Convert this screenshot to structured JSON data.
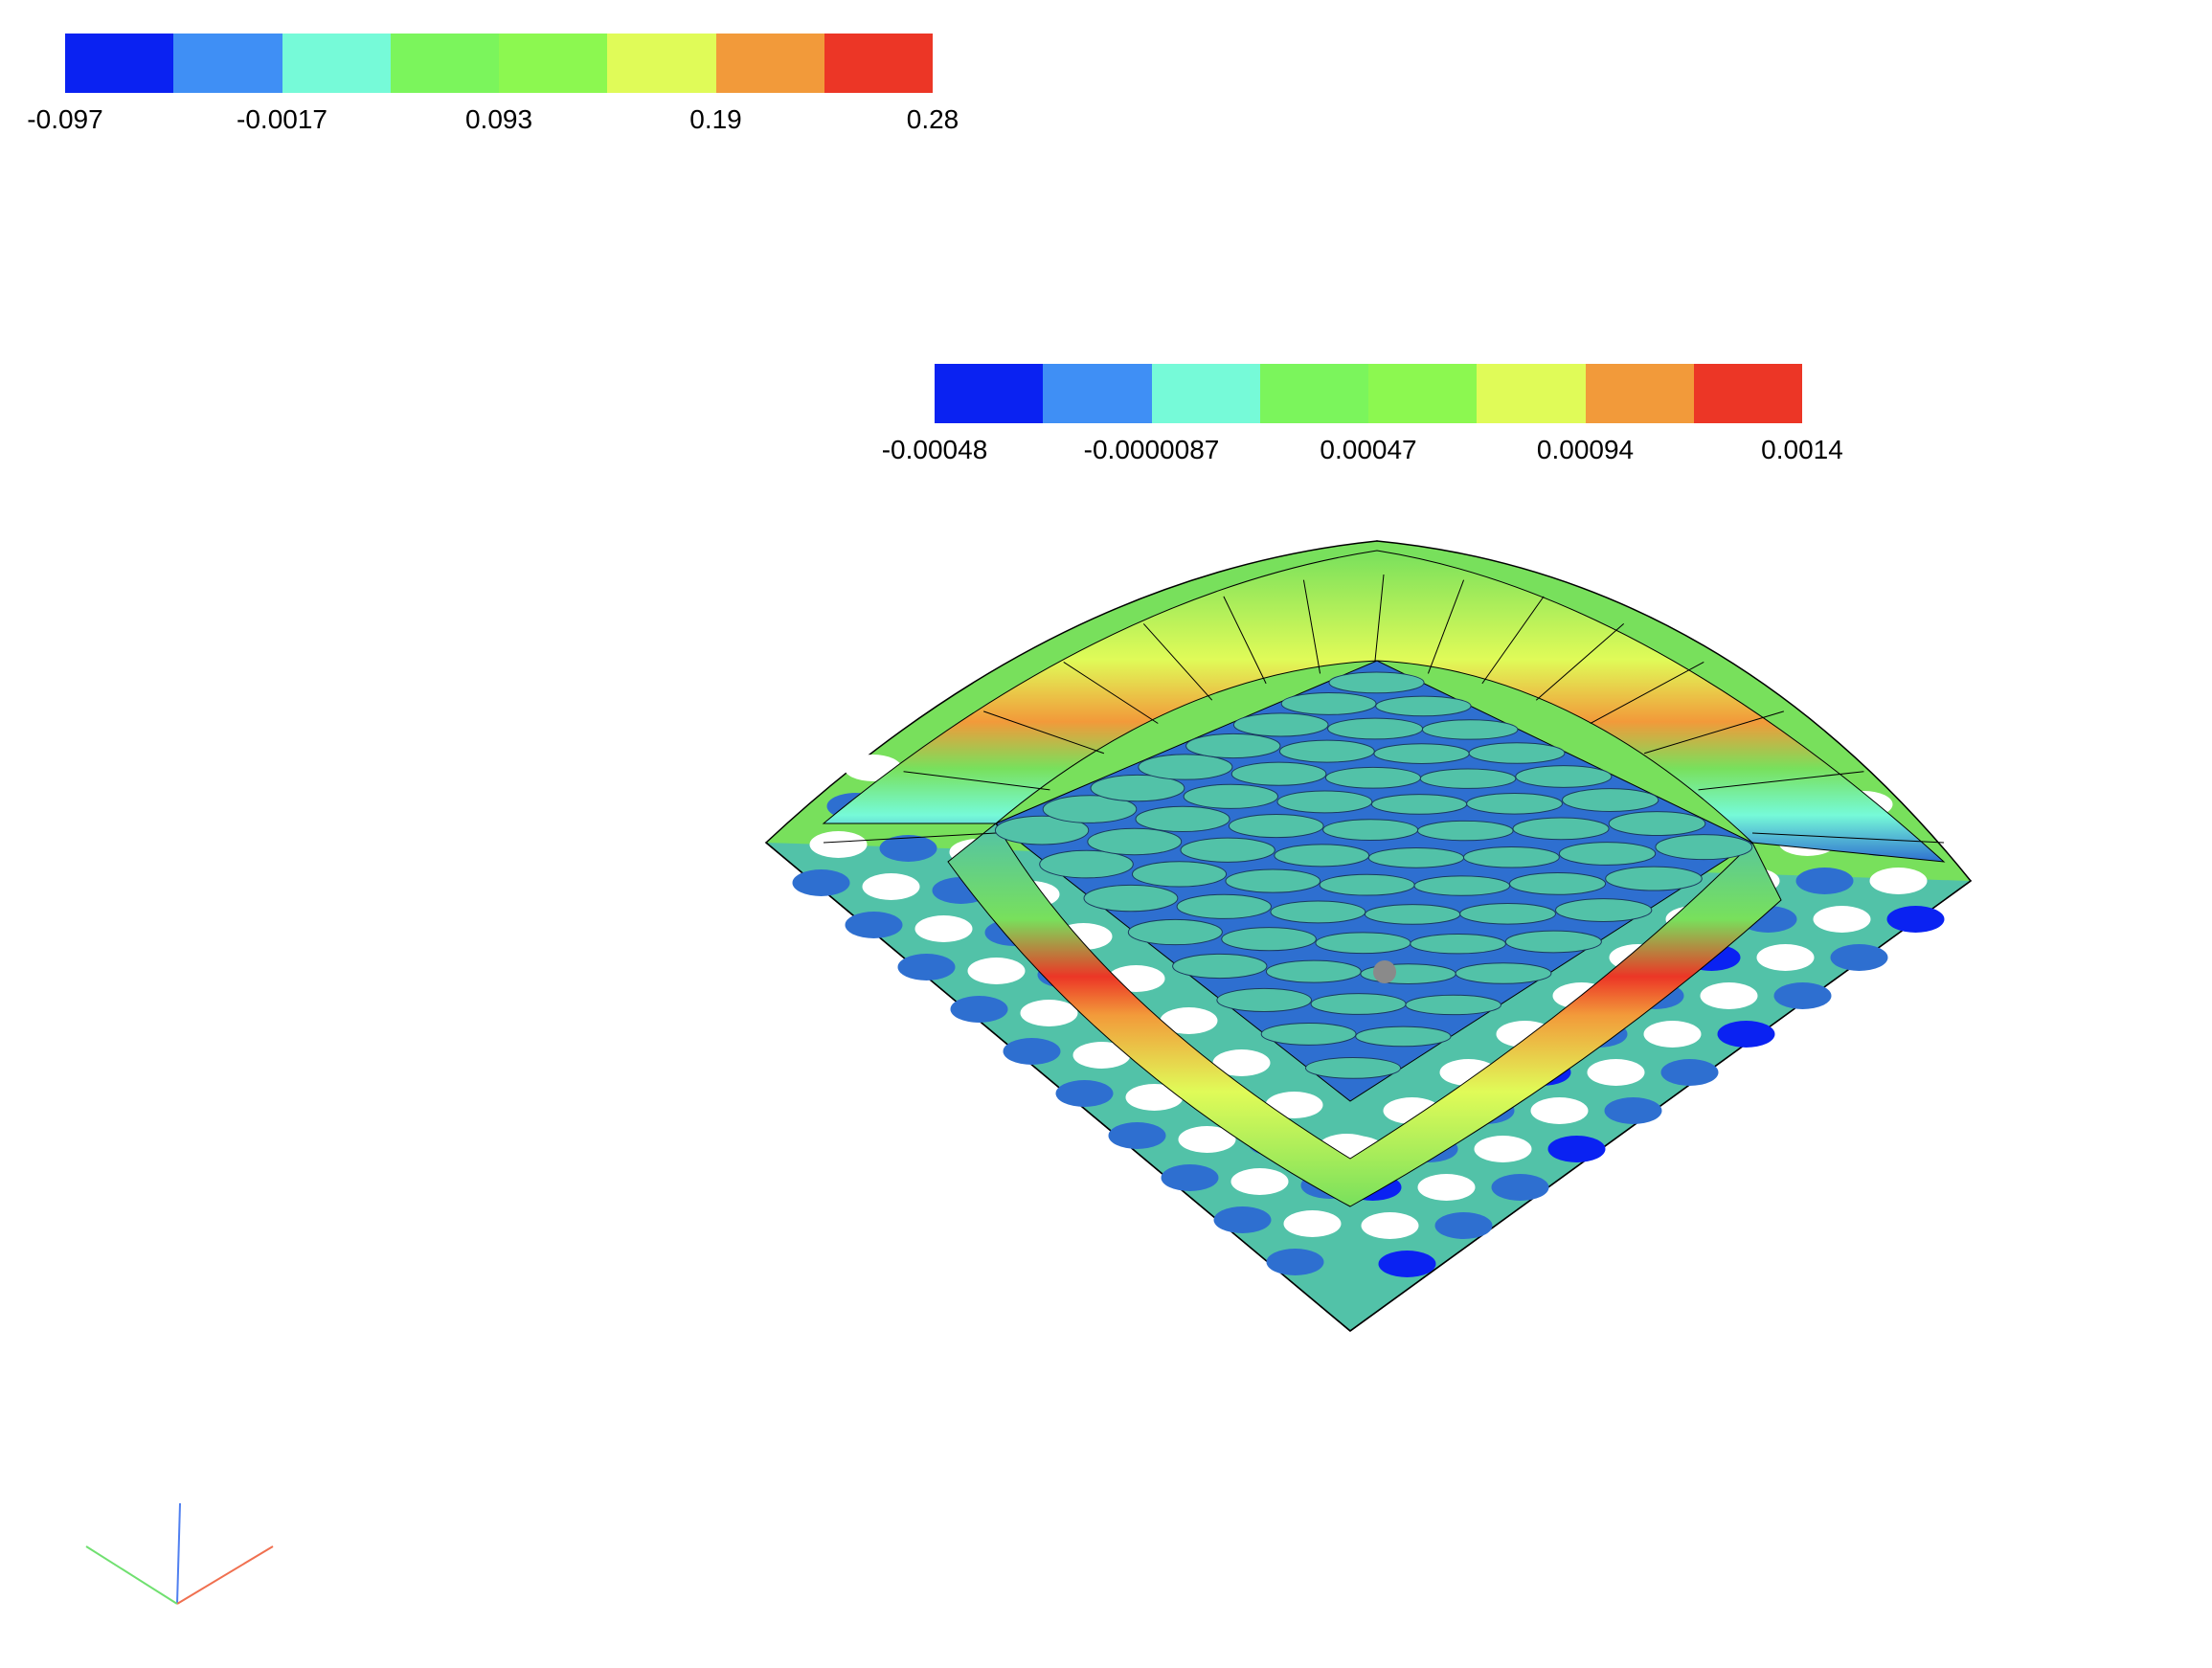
{
  "colorbar_top": {
    "colors": [
      "#0a22f2",
      "#3f8ff5",
      "#76fad8",
      "#7bf55c",
      "#8cf850",
      "#e0fb58",
      "#f29a3a",
      "#ec3626"
    ],
    "ticks": [
      "-0.097",
      "-0.0017",
      "0.093",
      "0.19",
      "0.28"
    ]
  },
  "colorbar_mid": {
    "colors": [
      "#0a22f2",
      "#3f8ff5",
      "#76fad8",
      "#7bf55c",
      "#8cf850",
      "#e0fb58",
      "#f29a3a",
      "#ec3626"
    ],
    "ticks": [
      "-0.00048",
      "-0.0000087",
      "0.00047",
      "0.00094",
      "0.0014"
    ]
  },
  "surface_colors": {
    "plate": "#52c2a8",
    "dark_blue": "#0a22f2",
    "mid_blue": "#2e6fd0",
    "green": "#78e05c",
    "yellow": "#e0fb58",
    "orange": "#f29a3a",
    "red": "#ec3626"
  },
  "axes_triad": {
    "x_color": "#f07050",
    "y_color": "#70e070",
    "z_color": "#5080f0"
  }
}
